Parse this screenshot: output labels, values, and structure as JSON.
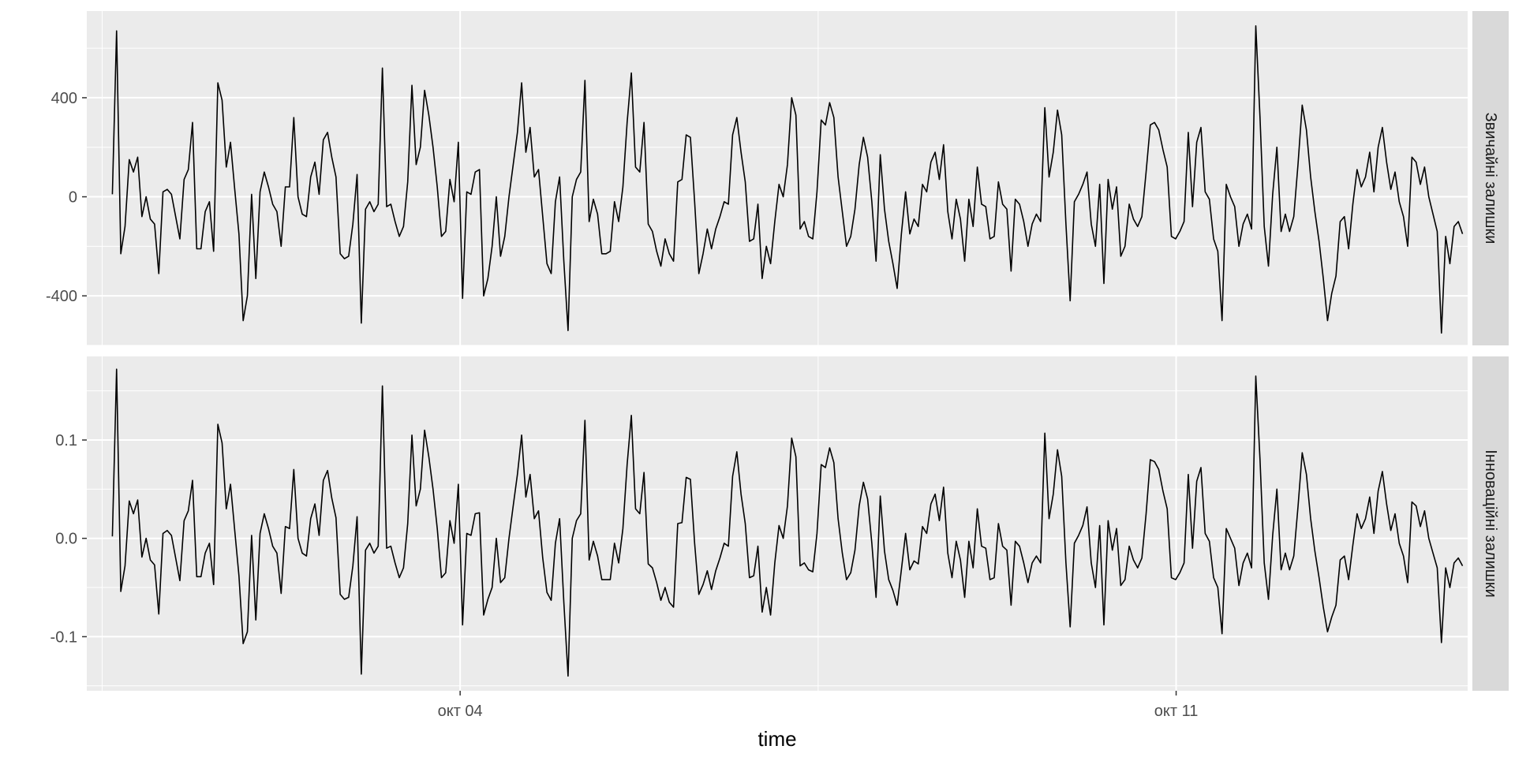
{
  "chart_data": {
    "type": "line",
    "facet_layout": "rows",
    "strip_position": "right",
    "xlabel": "time",
    "x_ticks": [
      "окт 04",
      "окт 11"
    ],
    "x_tick_positions": [
      36,
      106
    ],
    "x_range": [
      -0.5,
      134.5
    ],
    "x_unit": "hours from start of series",
    "panels": [
      {
        "strip": "Звичайні залишки",
        "y_ticks": [
          "400",
          "0",
          "-400"
        ],
        "y_tick_values": [
          400,
          0,
          -400
        ],
        "ylim": [
          -600,
          750
        ],
        "values": [
          10,
          670,
          -230,
          -120,
          150,
          100,
          160,
          -80,
          0,
          -90,
          -110,
          -310,
          20,
          30,
          10,
          -80,
          -170,
          70,
          110,
          300,
          -210,
          -210,
          -60,
          -20,
          -220,
          460,
          390,
          120,
          220,
          30,
          -150,
          -500,
          -400,
          10,
          -330,
          20,
          100,
          40,
          -30,
          -60,
          -200,
          40,
          40,
          320,
          0,
          -70,
          -80,
          80,
          140,
          10,
          230,
          260,
          160,
          80,
          -230,
          -250,
          -240,
          -110,
          90,
          -510,
          -50,
          -20,
          -60,
          -30,
          520,
          -40,
          -30,
          -100,
          -160,
          -120,
          60,
          450,
          130,
          200,
          430,
          330,
          200,
          40,
          -160,
          -140,
          70,
          -20,
          220,
          -410,
          20,
          10,
          100,
          110,
          -400,
          -330,
          -200,
          0,
          -240,
          -160,
          0,
          130,
          260,
          460,
          180,
          280,
          80,
          110,
          -80,
          -270,
          -310,
          -20,
          80,
          -260,
          -540,
          0,
          70,
          100,
          470,
          -100,
          -10,
          -70,
          -230,
          -230,
          -220,
          -20,
          -100,
          40,
          300,
          500,
          120,
          100,
          300,
          -110,
          -140,
          -220,
          -280,
          -170,
          -230,
          -260,
          60,
          70,
          250,
          240,
          -20,
          -310,
          -230,
          -130,
          -210,
          -130,
          -80,
          -20,
          -30,
          250,
          320,
          180,
          60,
          -180,
          -170,
          -30,
          -330,
          -200,
          -270,
          -100,
          50,
          0,
          130,
          400,
          330,
          -130,
          -100,
          -160,
          -170,
          20,
          310,
          290,
          380,
          320,
          80,
          -60,
          -200,
          -160,
          -50,
          130,
          240,
          160,
          -20,
          -260,
          170,
          -50,
          -180,
          -270,
          -370,
          -150,
          20,
          -150,
          -90,
          -120,
          50,
          20,
          140,
          180,
          70,
          210,
          -60,
          -170,
          -10,
          -90,
          -260,
          -10,
          -120,
          120,
          -30,
          -40,
          -170,
          -160,
          60,
          -30,
          -50,
          -300,
          -10,
          -30,
          -100,
          -200,
          -110,
          -70,
          -100,
          360,
          80,
          180,
          350,
          250,
          -110,
          -420,
          -20,
          10,
          50,
          100,
          -110,
          -200,
          50,
          -350,
          70,
          -50,
          40,
          -240,
          -200,
          -30,
          -90,
          -120,
          -80,
          100,
          290,
          300,
          270,
          190,
          120,
          -160,
          -170,
          -140,
          -100,
          260,
          -40,
          220,
          280,
          20,
          -10,
          -170,
          -220,
          -500,
          50,
          0,
          -40,
          -200,
          -110,
          -70,
          -130,
          690,
          320,
          -120,
          -280,
          10,
          200,
          -140,
          -70,
          -140,
          -80,
          130,
          370,
          270,
          80,
          -60,
          -180,
          -330,
          -500,
          -390,
          -320,
          -100,
          -80,
          -210,
          -30,
          110,
          40,
          80,
          180,
          20,
          200,
          280,
          140,
          30,
          100,
          -20,
          -80,
          -200,
          160,
          140,
          50,
          120,
          0,
          -70,
          -140,
          -550,
          -160,
          -270,
          -120,
          -100,
          -150
        ],
        "x_range_values": [
          2,
          134
        ]
      },
      {
        "strip": "Інноваційні залишки",
        "y_ticks": [
          "0.1",
          "0.0",
          "-0.1"
        ],
        "y_tick_values": [
          0.1,
          0,
          -0.1
        ],
        "ylim": [
          -0.155,
          0.185
        ],
        "values": [
          0.002,
          0.172,
          -0.054,
          -0.028,
          0.038,
          0.025,
          0.039,
          -0.019,
          0.0,
          -0.022,
          -0.027,
          -0.077,
          0.005,
          0.008,
          0.003,
          -0.02,
          -0.043,
          0.018,
          0.028,
          0.059,
          -0.039,
          -0.039,
          -0.015,
          -0.005,
          -0.047,
          0.116,
          0.097,
          0.03,
          0.055,
          0.008,
          -0.038,
          -0.107,
          -0.095,
          0.003,
          -0.083,
          0.005,
          0.025,
          0.01,
          -0.008,
          -0.015,
          -0.056,
          0.012,
          0.01,
          0.07,
          0.0,
          -0.015,
          -0.018,
          0.02,
          0.035,
          0.003,
          0.059,
          0.069,
          0.041,
          0.021,
          -0.057,
          -0.062,
          -0.06,
          -0.028,
          0.022,
          -0.138,
          -0.012,
          -0.005,
          -0.015,
          -0.008,
          0.155,
          -0.01,
          -0.008,
          -0.025,
          -0.04,
          -0.03,
          0.015,
          0.105,
          0.033,
          0.05,
          0.11,
          0.083,
          0.05,
          0.01,
          -0.04,
          -0.035,
          0.018,
          -0.005,
          0.055,
          -0.088,
          0.005,
          0.003,
          0.025,
          0.026,
          -0.078,
          -0.062,
          -0.05,
          0.0,
          -0.045,
          -0.04,
          0.0,
          0.033,
          0.065,
          0.105,
          0.042,
          0.065,
          0.02,
          0.028,
          -0.02,
          -0.055,
          -0.063,
          -0.005,
          0.02,
          -0.065,
          -0.14,
          0.0,
          0.018,
          0.025,
          0.12,
          -0.022,
          -0.003,
          -0.018,
          -0.042,
          -0.042,
          -0.042,
          -0.005,
          -0.025,
          0.01,
          0.075,
          0.125,
          0.03,
          0.025,
          0.067,
          -0.026,
          -0.03,
          -0.045,
          -0.063,
          -0.05,
          -0.065,
          -0.07,
          0.015,
          0.016,
          0.062,
          0.06,
          -0.005,
          -0.057,
          -0.047,
          -0.033,
          -0.052,
          -0.033,
          -0.02,
          -0.005,
          -0.008,
          0.063,
          0.088,
          0.045,
          0.015,
          -0.04,
          -0.038,
          -0.008,
          -0.075,
          -0.05,
          -0.078,
          -0.025,
          0.013,
          0.0,
          0.033,
          0.102,
          0.083,
          -0.028,
          -0.025,
          -0.032,
          -0.034,
          0.005,
          0.075,
          0.072,
          0.092,
          0.077,
          0.02,
          -0.015,
          -0.042,
          -0.035,
          -0.012,
          0.033,
          0.057,
          0.04,
          -0.005,
          -0.06,
          0.043,
          -0.013,
          -0.042,
          -0.053,
          -0.068,
          -0.032,
          0.005,
          -0.032,
          -0.023,
          -0.026,
          0.012,
          0.005,
          0.035,
          0.045,
          0.018,
          0.052,
          -0.015,
          -0.04,
          -0.003,
          -0.022,
          -0.06,
          -0.003,
          -0.03,
          0.03,
          -0.008,
          -0.01,
          -0.042,
          -0.04,
          0.015,
          -0.008,
          -0.012,
          -0.068,
          -0.003,
          -0.008,
          -0.025,
          -0.045,
          -0.025,
          -0.018,
          -0.025,
          0.107,
          0.02,
          0.045,
          0.09,
          0.063,
          -0.025,
          -0.09,
          -0.005,
          0.003,
          0.013,
          0.032,
          -0.025,
          -0.05,
          0.013,
          -0.088,
          0.018,
          -0.012,
          0.01,
          -0.048,
          -0.042,
          -0.008,
          -0.022,
          -0.03,
          -0.02,
          0.025,
          0.08,
          0.078,
          0.07,
          0.048,
          0.03,
          -0.04,
          -0.042,
          -0.035,
          -0.025,
          0.065,
          -0.01,
          0.058,
          0.072,
          0.005,
          -0.003,
          -0.04,
          -0.05,
          -0.097,
          0.01,
          0.0,
          -0.01,
          -0.048,
          -0.025,
          -0.015,
          -0.03,
          0.165,
          0.08,
          -0.025,
          -0.062,
          0.003,
          0.05,
          -0.032,
          -0.015,
          -0.032,
          -0.018,
          0.032,
          0.087,
          0.065,
          0.02,
          -0.013,
          -0.04,
          -0.07,
          -0.095,
          -0.08,
          -0.068,
          -0.022,
          -0.018,
          -0.042,
          -0.007,
          0.025,
          0.01,
          0.02,
          0.042,
          0.005,
          0.048,
          0.068,
          0.035,
          0.008,
          0.025,
          -0.005,
          -0.018,
          -0.045,
          0.037,
          0.033,
          0.012,
          0.028,
          0.0,
          -0.015,
          -0.03,
          -0.106,
          -0.03,
          -0.05,
          -0.025,
          -0.02,
          -0.028
        ],
        "x_range_values": [
          2,
          134
        ]
      }
    ],
    "colors": {
      "panel_bg": "#ebebeb",
      "grid": "#ffffff",
      "strip_bg": "#d9d9d9",
      "line": "#000000"
    },
    "grid": true,
    "legend": "none"
  }
}
